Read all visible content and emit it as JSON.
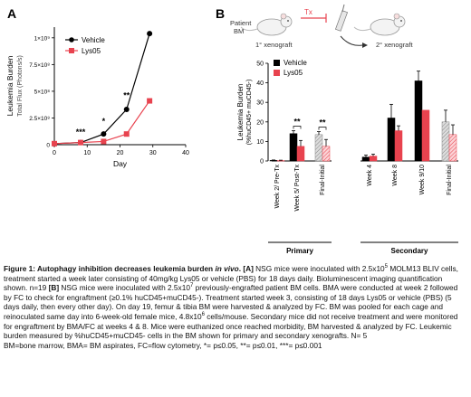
{
  "chart_data": [
    {
      "type": "line",
      "panel_label": "A",
      "title": "",
      "ylabel": "Leukemia Burden",
      "ylabel_sub": "Total Flux (Photons/s)",
      "xlabel": "Day",
      "xlim": [
        0,
        40
      ],
      "ylim": [
        0,
        1100000000.0
      ],
      "xticks": [
        "0",
        "10",
        "20",
        "30",
        "40"
      ],
      "yticks": [
        "0",
        "2.5×10⁸",
        "5×10⁸",
        "7.5×10⁸",
        "1×10⁹"
      ],
      "grid": false,
      "legend": "top-left",
      "series": [
        {
          "name": "Vehicle",
          "color": "#000000",
          "marker": "circle",
          "x": [
            0,
            8,
            15,
            22,
            29
          ],
          "y": [
            10000000,
            20000000,
            100000000,
            330000000,
            1040000000
          ]
        },
        {
          "name": "Lys05",
          "color": "#e8434f",
          "marker": "square",
          "x": [
            0,
            8,
            15,
            22,
            29
          ],
          "y": [
            10000000,
            20000000,
            30000000,
            100000000,
            410000000
          ]
        }
      ],
      "annotations": [
        {
          "x": 8,
          "y": 60000000,
          "text": "***"
        },
        {
          "x": 15,
          "y": 160000000,
          "text": "*"
        },
        {
          "x": 22,
          "y": 400000000,
          "text": "**"
        }
      ]
    },
    {
      "type": "bar",
      "panel_label": "B",
      "title": "",
      "ylabel": "Leukemia Burden",
      "ylabel_sub": "(%huCD45+ muCD45-)",
      "ylim": [
        0,
        50
      ],
      "yticks": [
        "0",
        "10",
        "20",
        "30",
        "40",
        "50"
      ],
      "grid": false,
      "legend": "top-left",
      "series_names": [
        "Vehicle",
        "Lys05"
      ],
      "series_colors": [
        "#000000",
        "#e8434f"
      ],
      "categories": [
        "Week 2/ Pre-Tx",
        "Week 5/ Post-Tx",
        "Final-Initial",
        "Week 4",
        "Week 8",
        "Week 9/10",
        "Final-Initial"
      ],
      "groups": [
        {
          "label": "Primary",
          "categories": [
            0,
            1,
            2
          ]
        },
        {
          "label": "Secondary",
          "categories": [
            3,
            4,
            5,
            6
          ]
        }
      ],
      "values": [
        [
          0.3,
          0.2
        ],
        [
          14,
          7.5
        ],
        [
          13.5,
          7.5
        ],
        [
          2,
          2.5
        ],
        [
          22,
          15.5
        ],
        [
          41,
          26
        ],
        [
          20,
          13.5
        ]
      ],
      "errors": [
        [
          0.2,
          0.2
        ],
        [
          1.5,
          3
        ],
        [
          1.5,
          3.5
        ],
        [
          1,
          1
        ],
        [
          7,
          2.5
        ],
        [
          5,
          0
        ],
        [
          6,
          5
        ]
      ],
      "annotations": [
        {
          "category": 1,
          "text": "**"
        },
        {
          "category": 2,
          "text": "**"
        }
      ]
    }
  ],
  "diagram": {
    "patient_label_1": "Patient",
    "patient_label_2": "BM",
    "tx_label": "Tx",
    "primary_label": "1° xenograft",
    "secondary_label": "2° xenograft"
  },
  "caption": {
    "p1_bold": "Figure 1: Autophagy inhibition decreases leukemia burden",
    "p1_italic": "in vivo",
    "p1_a": ". [A] ",
    "p1_text": "NSG mice were inoculated with 2.5x10",
    "p1_sup1": "5",
    "p1_text2": " MOLM13 BLIV cells, treatment started a week later consisting of 40mg/kg Lys05 or vehicle (PBS) for 18 days daily. Bioluminescent imaging quantification shown. n=19 ",
    "p1_b": "[B]",
    "p1_text3": " NSG mice were inoculated with 2.5x10",
    "p1_sup2": "7",
    "p1_text4": " previously-engrafted patient BM cells. BMA were conducted at week 2 followed by FC to check for engraftment (≥0.1% huCD45+muCD45-). Treatment started week 3, consisting of 18 days Lys05 or vehicle (PBS) (5 days daily, then every other day). On day 19, femur & tibia BM were harvested & analyzed by FC. BM was pooled for each cage and reinoculated same day into 6-week-old female mice, 4.8x10",
    "p1_sup3": "6",
    "p1_text5": " cells/mouse. Secondary mice did not receive treatment and were monitored for engraftment by BMA/FC at weeks 4 & 8. Mice were euthanized once reached morbidity, BM harvested & analyzed by FC. Leukemic burden measured by %huCD45+muCD45- cells in the BM shown for primary and secondary xenografts. N= 5",
    "p2": "BM=bone marrow, BMA= BM aspirates, FC=flow cytometry, *= p≤0.05, **= p≤0.01, ***= p≤0.001"
  }
}
